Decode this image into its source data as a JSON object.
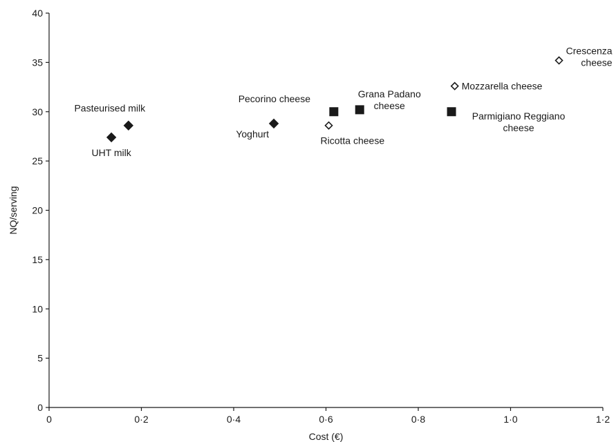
{
  "chart_data": {
    "type": "scatter",
    "xlabel": "Cost (€)",
    "ylabel": "NQ/serving",
    "xlim": [
      0,
      1.2
    ],
    "ylim": [
      0,
      40
    ],
    "x_ticks": [
      {
        "value": 0,
        "label": "0"
      },
      {
        "value": 0.2,
        "label": "0·2"
      },
      {
        "value": 0.4,
        "label": "0·4"
      },
      {
        "value": 0.6,
        "label": "0·6"
      },
      {
        "value": 0.8,
        "label": "0·8"
      },
      {
        "value": 1.0,
        "label": "1·0"
      },
      {
        "value": 1.2,
        "label": "1·2"
      }
    ],
    "y_ticks": [
      {
        "value": 0,
        "label": "0"
      },
      {
        "value": 5,
        "label": "5"
      },
      {
        "value": 10,
        "label": "10"
      },
      {
        "value": 15,
        "label": "15"
      },
      {
        "value": 20,
        "label": "20"
      },
      {
        "value": 25,
        "label": "25"
      },
      {
        "value": 30,
        "label": "30"
      },
      {
        "value": 35,
        "label": "35"
      },
      {
        "value": 40,
        "label": "40"
      }
    ],
    "points": [
      {
        "name": "UHT milk",
        "label_lines": [
          "UHT milk"
        ],
        "x": 0.135,
        "y": 27.4,
        "marker": "diamond-filled",
        "anchor": "middle"
      },
      {
        "name": "Pasteurised milk",
        "label_lines": [
          "Pasteurised milk"
        ],
        "x": 0.172,
        "y": 28.6,
        "marker": "diamond-filled",
        "anchor": "middle"
      },
      {
        "name": "Yoghurt",
        "label_lines": [
          "Yoghurt"
        ],
        "x": 0.487,
        "y": 28.8,
        "marker": "diamond-filled",
        "anchor": "end"
      },
      {
        "name": "Pecorino cheese",
        "label_lines": [
          "Pecorino cheese"
        ],
        "x": 0.617,
        "y": 30.0,
        "marker": "square-filled",
        "anchor": "middle"
      },
      {
        "name": "Ricotta cheese",
        "label_lines": [
          "Ricotta cheese"
        ],
        "x": 0.606,
        "y": 28.6,
        "marker": "diamond-open",
        "anchor": "start"
      },
      {
        "name": "Grana Padano cheese",
        "label_lines": [
          "Grana Padano",
          "cheese"
        ],
        "x": 0.673,
        "y": 30.2,
        "marker": "square-filled",
        "anchor": "middle"
      },
      {
        "name": "Parmigiano Reggiano cheese",
        "label_lines": [
          "Parmigiano Reggiano",
          "cheese"
        ],
        "x": 0.872,
        "y": 30.0,
        "marker": "square-filled",
        "anchor": "middle"
      },
      {
        "name": "Mozzarella cheese",
        "label_lines": [
          "Mozzarella cheese"
        ],
        "x": 0.879,
        "y": 32.6,
        "marker": "diamond-open",
        "anchor": "start"
      },
      {
        "name": "Crescenza cheese",
        "label_lines": [
          "Crescenza",
          "cheese"
        ],
        "x": 1.105,
        "y": 35.2,
        "marker": "diamond-open",
        "anchor": "end"
      }
    ]
  }
}
